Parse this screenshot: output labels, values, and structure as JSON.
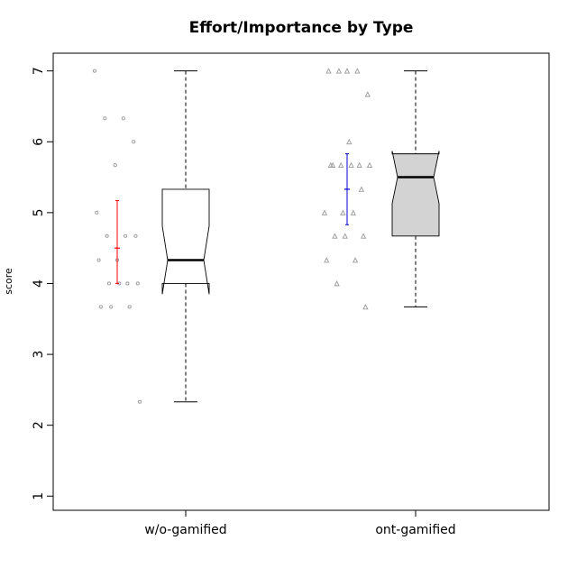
{
  "chart_data": {
    "type": "boxplot",
    "title": "Effort/Importance by Type",
    "xlabel": "",
    "ylabel": "score",
    "ylim": [
      0.8,
      7.25
    ],
    "yticks": [
      1,
      2,
      3,
      4,
      5,
      6,
      7
    ],
    "grid": false,
    "notched": true,
    "categories": [
      "w/o-gamified",
      "ont-gamified"
    ],
    "boxes": [
      {
        "name": "w/o-gamified",
        "fill": "#ffffff",
        "whisker_low": 2.33,
        "q1": 4.0,
        "median": 4.33,
        "q3": 5.33,
        "whisker_high": 7.0,
        "notch_low": 3.85,
        "notch_high": 4.81
      },
      {
        "name": "ont-gamified",
        "fill": "#d3d3d3",
        "whisker_low": 3.67,
        "q1": 4.67,
        "median": 5.5,
        "q3": 5.83,
        "whisker_high": 7.0,
        "notch_low": 5.13,
        "notch_high": 5.87
      }
    ],
    "mean_ci": [
      {
        "name": "w/o-gamified",
        "mean": 4.5,
        "low": 4.0,
        "high": 5.17,
        "color": "#ff0000"
      },
      {
        "name": "ont-gamified",
        "mean": 5.33,
        "low": 4.83,
        "high": 5.83,
        "color": "#0000cd"
      }
    ],
    "points": [
      {
        "name": "w/o-gamified",
        "marker": "circle",
        "color": "#999999",
        "values": [
          7.0,
          6.33,
          6.33,
          6.0,
          5.67,
          5.0,
          4.67,
          4.67,
          4.67,
          4.33,
          4.33,
          4.0,
          4.0,
          4.0,
          4.0,
          3.67,
          3.67,
          3.67,
          2.33
        ]
      },
      {
        "name": "ont-gamified",
        "marker": "triangle",
        "color": "#999999",
        "values": [
          7.0,
          7.0,
          7.0,
          7.0,
          6.67,
          6.0,
          5.67,
          5.67,
          5.67,
          5.67,
          5.67,
          5.67,
          5.33,
          5.0,
          5.0,
          5.0,
          4.67,
          4.67,
          4.67,
          4.33,
          4.33,
          4.0,
          3.67
        ]
      }
    ]
  }
}
